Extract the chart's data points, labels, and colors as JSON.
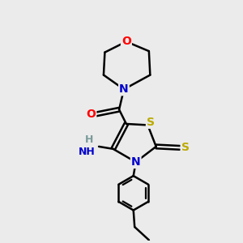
{
  "bg_color": "#ebebeb",
  "atom_colors": {
    "C": "#000000",
    "N": "#0000cc",
    "O": "#ff0000",
    "S": "#bbaa00",
    "H": "#7a9a9a"
  },
  "bond_color": "#000000",
  "bond_width": 1.8,
  "figsize": [
    3.0,
    3.0
  ],
  "dpi": 100
}
